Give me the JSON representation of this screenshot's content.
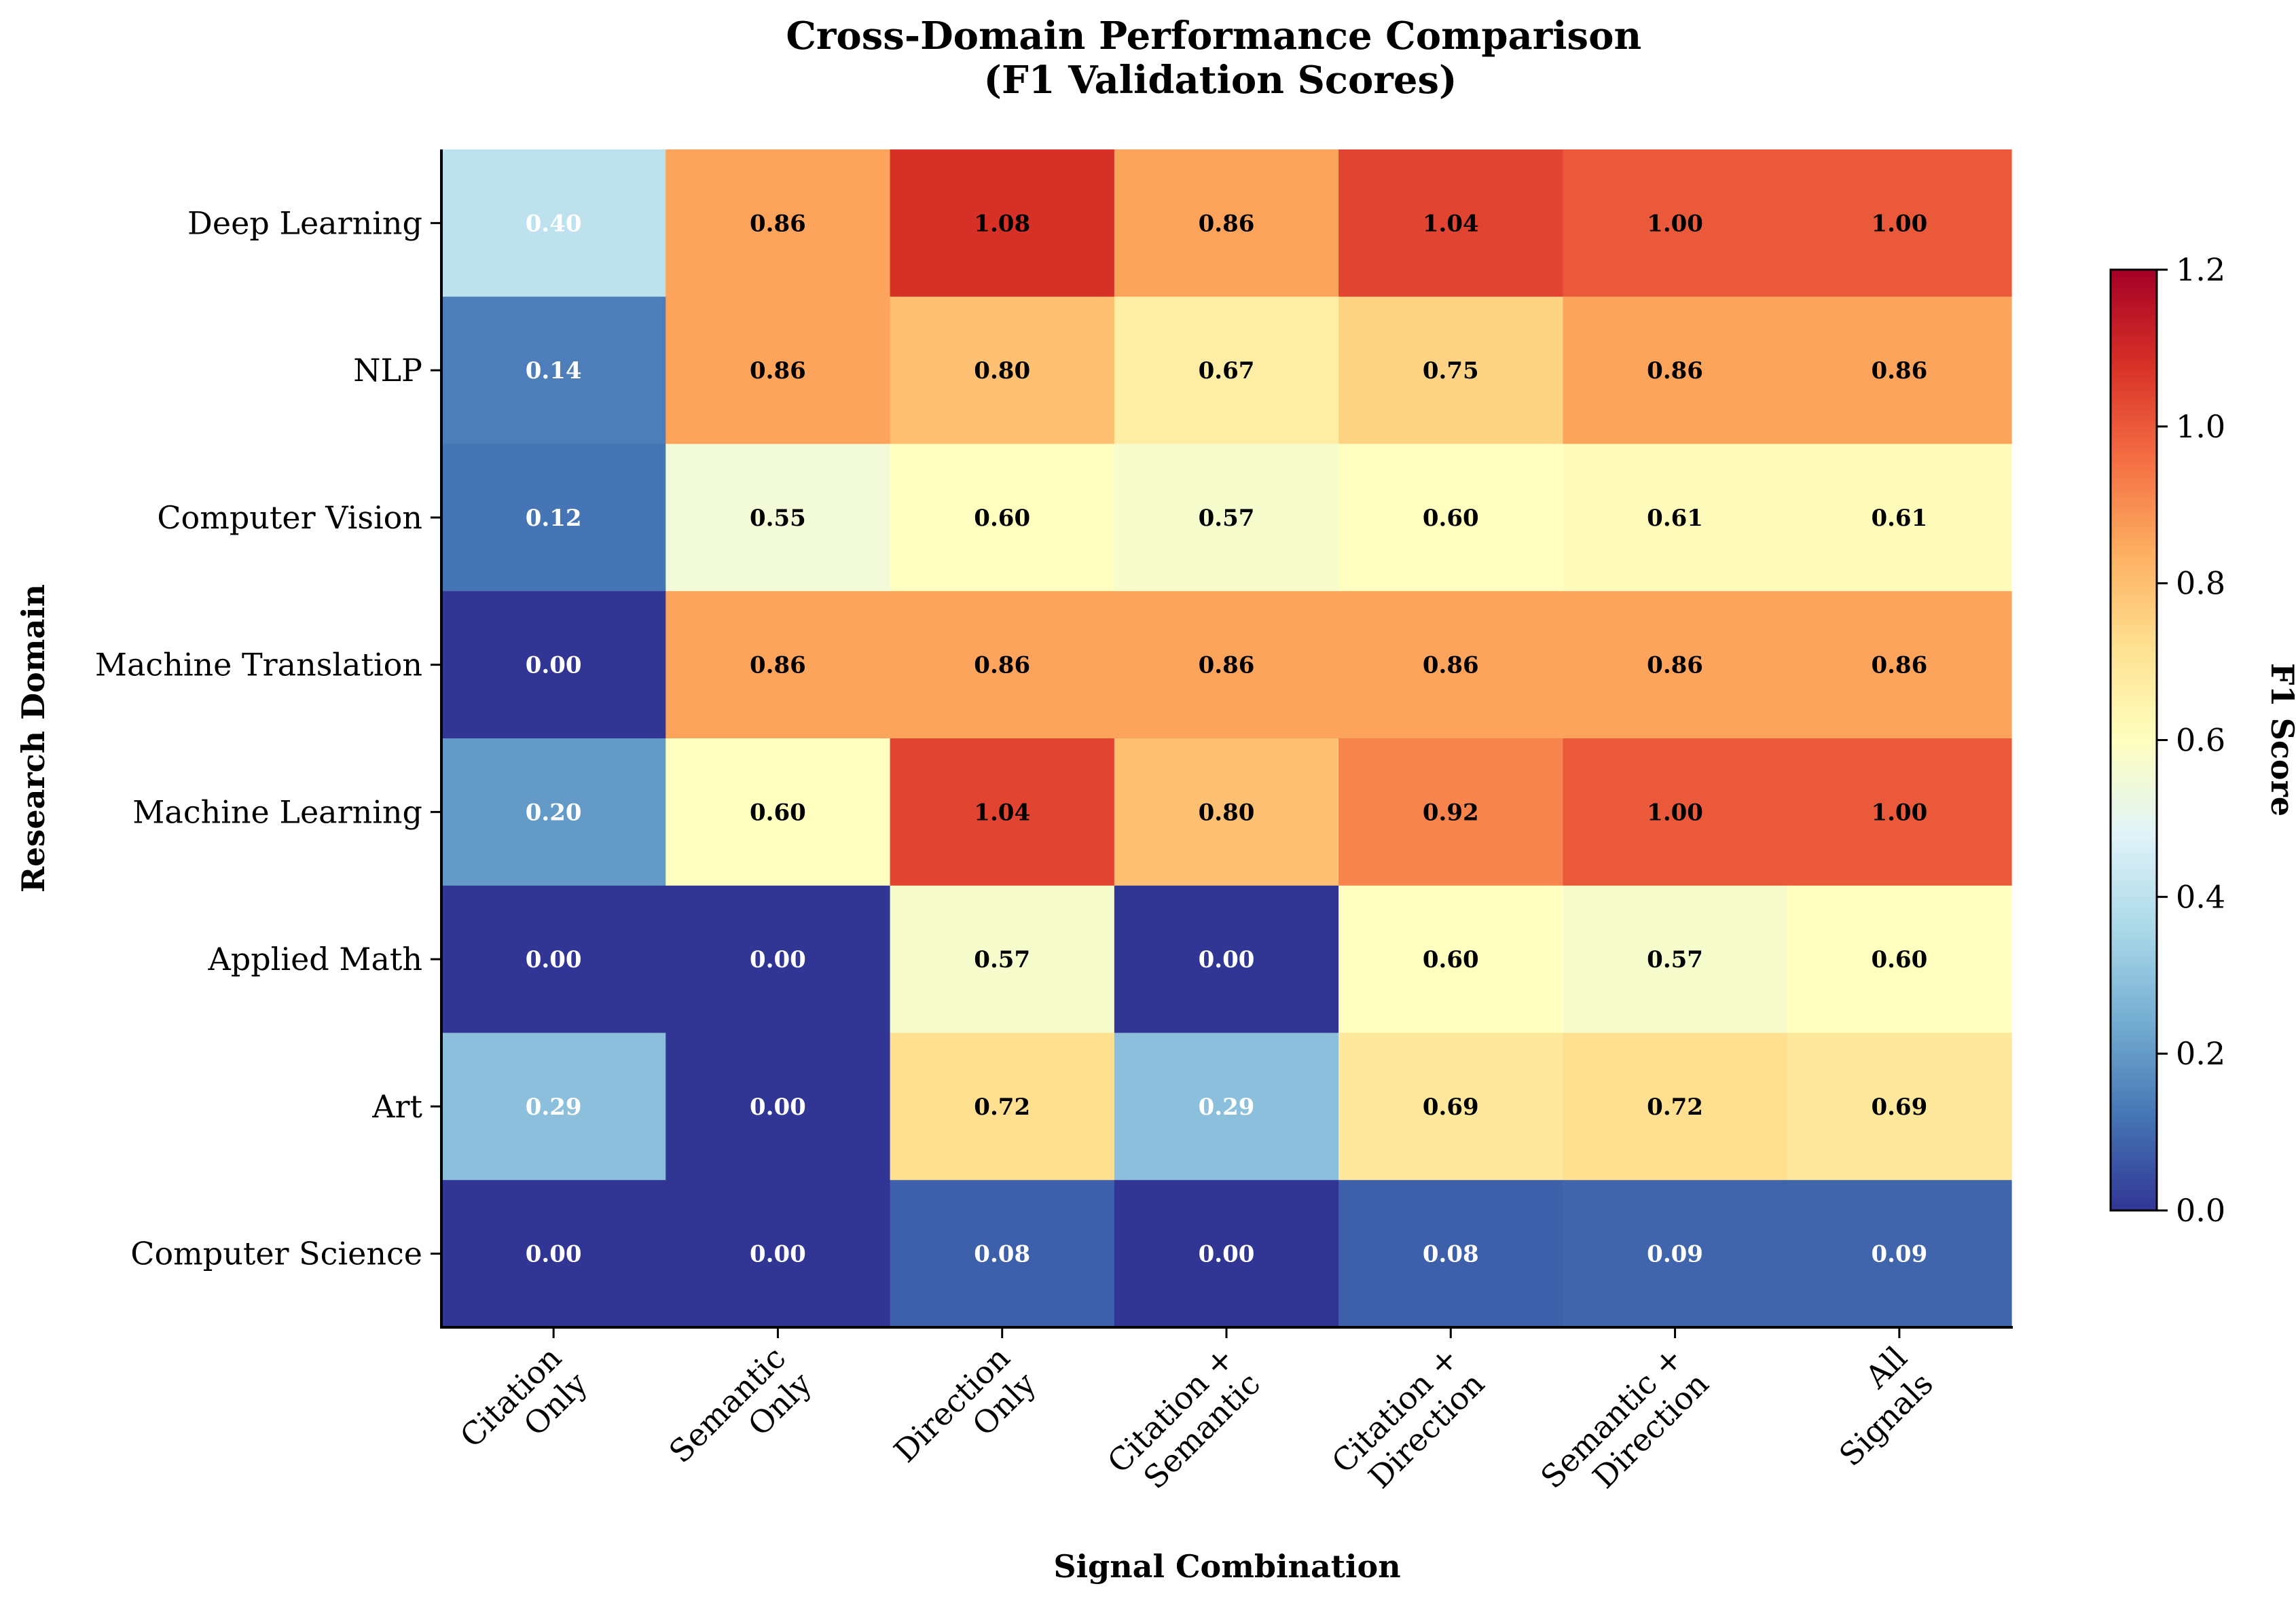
{
  "chart_data": {
    "type": "heatmap",
    "title": "Cross-Domain Performance Comparison\n(F1 Validation Scores)",
    "xlabel": "Signal Combination",
    "ylabel": "Research Domain",
    "colorbar_label": "F1 Score",
    "colormap": "RdYlBu_r",
    "vmin": 0.0,
    "vmax": 1.2,
    "colorbar_ticks": [
      "0.0",
      "0.2",
      "0.4",
      "0.6",
      "0.8",
      "1.0",
      "1.2"
    ],
    "columns": [
      "Citation\nOnly",
      "Semantic\nOnly",
      "Direction\nOnly",
      "Citation +\nSemantic",
      "Citation +\nDirection",
      "Semantic +\nDirection",
      "All\nSignals"
    ],
    "rows": [
      "Deep Learning",
      "NLP",
      "Computer Vision",
      "Machine Translation",
      "Machine Learning",
      "Applied Math",
      "Art",
      "Computer Science"
    ],
    "values": [
      [
        0.4,
        0.86,
        1.08,
        0.86,
        1.04,
        1.0,
        1.0
      ],
      [
        0.14,
        0.86,
        0.8,
        0.67,
        0.75,
        0.86,
        0.86
      ],
      [
        0.12,
        0.55,
        0.6,
        0.57,
        0.6,
        0.61,
        0.61
      ],
      [
        0.0,
        0.86,
        0.86,
        0.86,
        0.86,
        0.86,
        0.86
      ],
      [
        0.2,
        0.6,
        1.04,
        0.8,
        0.92,
        1.0,
        1.0
      ],
      [
        0.0,
        0.0,
        0.57,
        0.0,
        0.6,
        0.57,
        0.6
      ],
      [
        0.29,
        0.0,
        0.72,
        0.29,
        0.69,
        0.72,
        0.69
      ],
      [
        0.0,
        0.0,
        0.08,
        0.0,
        0.08,
        0.09,
        0.09
      ]
    ],
    "cell_labels": [
      [
        "0.40",
        "0.86",
        "1.08",
        "0.86",
        "1.04",
        "1.00",
        "1.00"
      ],
      [
        "0.14",
        "0.86",
        "0.80",
        "0.67",
        "0.75",
        "0.86",
        "0.86"
      ],
      [
        "0.12",
        "0.55",
        "0.60",
        "0.57",
        "0.60",
        "0.61",
        "0.61"
      ],
      [
        "0.00",
        "0.86",
        "0.86",
        "0.86",
        "0.86",
        "0.86",
        "0.86"
      ],
      [
        "0.20",
        "0.60",
        "1.04",
        "0.80",
        "0.92",
        "1.00",
        "1.00"
      ],
      [
        "0.00",
        "0.00",
        "0.57",
        "0.00",
        "0.60",
        "0.57",
        "0.60"
      ],
      [
        "0.29",
        "0.00",
        "0.72",
        "0.29",
        "0.69",
        "0.72",
        "0.69"
      ],
      [
        "0.00",
        "0.00",
        "0.08",
        "0.00",
        "0.08",
        "0.09",
        "0.09"
      ]
    ],
    "grid": false
  }
}
